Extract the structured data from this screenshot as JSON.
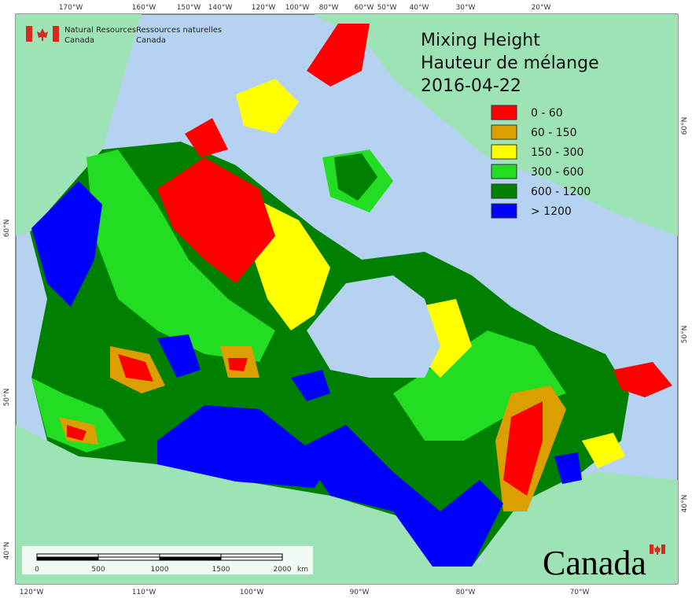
{
  "header": {
    "agency_en_1": "Natural Resources",
    "agency_en_2": "Canada",
    "agency_fr_1": "Ressources naturelles",
    "agency_fr_2": "Canada"
  },
  "title": {
    "line1": "Mixing Height",
    "line2": "Hauteur de mélange",
    "date": "2016-04-22"
  },
  "legend": [
    {
      "label": "0 - 60",
      "color": "#ff0000"
    },
    {
      "label": "60 - 150",
      "color": "#dba000"
    },
    {
      "label": "150 - 300",
      "color": "#ffff00"
    },
    {
      "label": "300 - 600",
      "color": "#22dd22"
    },
    {
      "label": "600 - 1200",
      "color": "#008000"
    },
    {
      "label": "> 1200",
      "color": "#0000ff"
    }
  ],
  "top_lon_labels": [
    "170°W",
    "160°W",
    "150°W",
    "140°W",
    "120°W",
    "100°W",
    "80°W",
    "60°W",
    "50°W",
    "40°W",
    "30°W",
    "20°W"
  ],
  "bottom_lon_labels": [
    "120°W",
    "110°W",
    "100°W",
    "90°W",
    "80°W",
    "70°W"
  ],
  "right_lat_labels": [
    "60°N",
    "50°N",
    "40°N"
  ],
  "left_lat_labels": [
    "60°N",
    "50°N",
    "40°N"
  ],
  "scale_bar": [
    "0",
    "500",
    "1000",
    "1500",
    "2000",
    "km"
  ],
  "wordmark": "Canada"
}
